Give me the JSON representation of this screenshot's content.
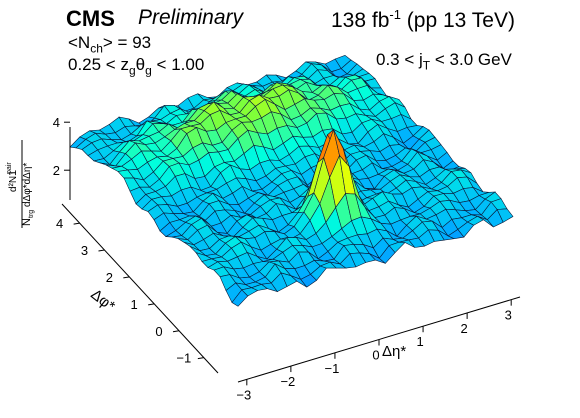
{
  "header": {
    "experiment": "CMS",
    "status": "Preliminary",
    "lumi_value": "138 fb",
    "lumi_exp": "-1",
    "lumi_energy": "(pp 13 TeV)"
  },
  "selection": {
    "nch_text": "<N",
    "nch_sub": "ch",
    "nch_val": "> = 93",
    "z_pre": "0.25 < z",
    "z_sub1": "g",
    "theta": "θ",
    "z_sub2": "g",
    "z_post": "< 1.00",
    "jt_pre": "0.3 < j",
    "jt_sub": "T",
    "jt_post": "< 3.0 GeV"
  },
  "chart_data": {
    "type": "surface",
    "title": "",
    "xlabel": "Δη*",
    "ylabel": "Δφ*",
    "zlabel": "1/N_trg d²N^pair/dΔφ*dΔη*",
    "x_ticks": [
      "−3",
      "−2",
      "−1",
      "0",
      "1",
      "2",
      "3"
    ],
    "y_ticks": [
      "−1",
      "0",
      "1",
      "2",
      "3",
      "4"
    ],
    "z_ticks": [
      "2",
      "4"
    ],
    "xlim": [
      -3.2,
      3.2
    ],
    "ylim": [
      -1.57,
      4.71
    ],
    "zlim": [
      0,
      5
    ],
    "features": {
      "pedestal": 2.0,
      "near_side_peak": {
        "deta": 0,
        "dphi": 0,
        "height": 4.6
      },
      "away_side_ridge": {
        "dphi": 3.14,
        "height": 3.3
      }
    },
    "colorscale": [
      "#1a3cff",
      "#00b0ff",
      "#00ffdd",
      "#7dff3a",
      "#f0ff00",
      "#ff9900",
      "#ff1400"
    ]
  }
}
